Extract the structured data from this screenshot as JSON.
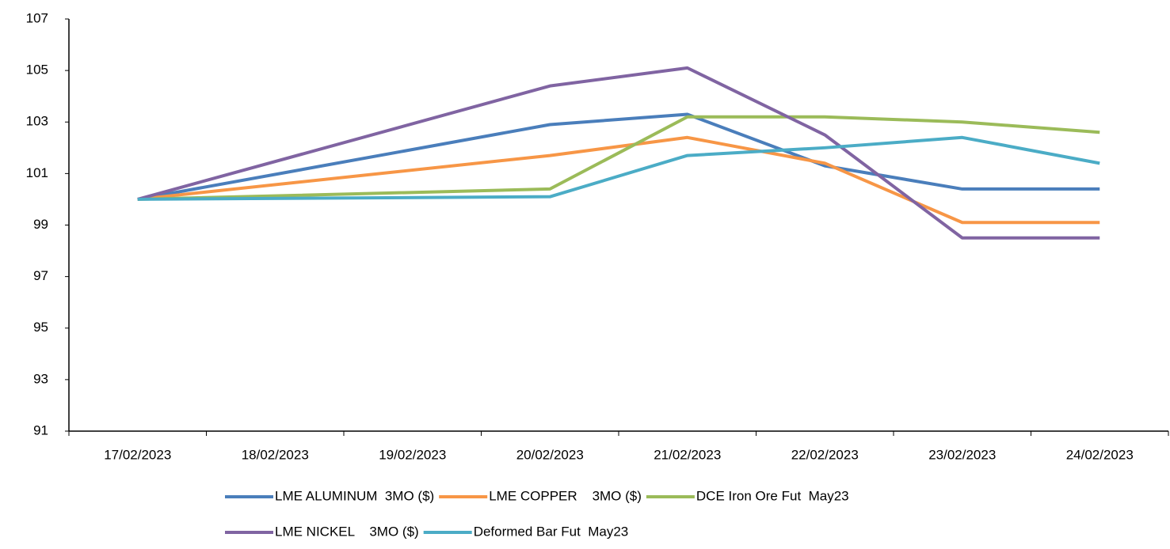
{
  "chart_data": {
    "type": "line",
    "categories": [
      "17/02/2023",
      "18/02/2023",
      "19/02/2023",
      "20/02/2023",
      "21/02/2023",
      "22/02/2023",
      "23/02/2023",
      "24/02/2023"
    ],
    "x": [
      "17/02/2023",
      "20/02/2023",
      "21/02/2023",
      "22/02/2023",
      "23/02/2023",
      "24/02/2023"
    ],
    "series": [
      {
        "name": "LME ALUMINUM  3MO ($)",
        "color": "#4a7ebb",
        "values": [
          100,
          102.9,
          103.3,
          101.3,
          100.4,
          100.4
        ]
      },
      {
        "name": "LME COPPER    3MO ($)",
        "color": "#f79646",
        "values": [
          100,
          101.7,
          102.4,
          101.4,
          99.1,
          99.1
        ]
      },
      {
        "name": "DCE Iron Ore Fut  May23",
        "color": "#9bbb59",
        "values": [
          100,
          100.4,
          103.2,
          103.2,
          103.0,
          102.6
        ]
      },
      {
        "name": "LME NICKEL    3MO ($)",
        "color": "#8064a2",
        "values": [
          100,
          104.4,
          105.1,
          102.5,
          98.5,
          98.5
        ]
      },
      {
        "name": "Deformed Bar Fut  May23",
        "color": "#4bacc6",
        "values": [
          100,
          100.1,
          101.7,
          102.0,
          102.4,
          101.4
        ]
      }
    ],
    "ylim": [
      91,
      107
    ],
    "yticks": [
      91,
      93,
      95,
      97,
      99,
      101,
      103,
      105,
      107
    ],
    "grid": false
  }
}
